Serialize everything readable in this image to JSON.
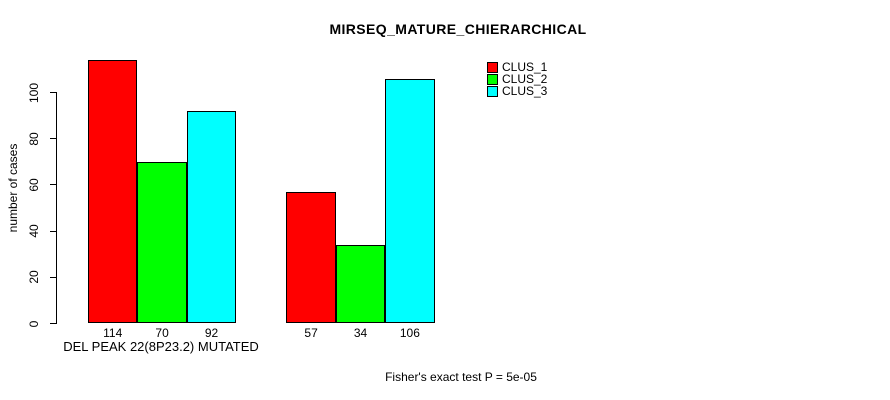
{
  "chart_data": {
    "type": "bar",
    "title": "MIRSEQ_MATURE_CHIERARCHICAL",
    "ylabel": "number of cases",
    "xlabel": "",
    "categories": [
      "DEL PEAK 22(8P23.2) MUTATED",
      ""
    ],
    "series": [
      {
        "name": "CLUS_1",
        "color": "#FF0000",
        "values": [
          114,
          57
        ]
      },
      {
        "name": "CLUS_2",
        "color": "#00FF00",
        "values": [
          70,
          34
        ]
      },
      {
        "name": "CLUS_3",
        "color": "#00FFFF",
        "values": [
          92,
          106
        ]
      }
    ],
    "bar_value_labels": [
      [
        "114",
        "70",
        "92"
      ],
      [
        "57",
        "34",
        "106"
      ]
    ],
    "yticks": [
      0,
      20,
      40,
      60,
      80,
      100
    ],
    "ylim": [
      0,
      114
    ],
    "grid": false,
    "legend_position": "top-right",
    "annotation": "Fisher's exact test P = 5e-05"
  },
  "colors": {
    "background": "#FFFFFF",
    "axis": "#000000",
    "text": "#000000"
  }
}
